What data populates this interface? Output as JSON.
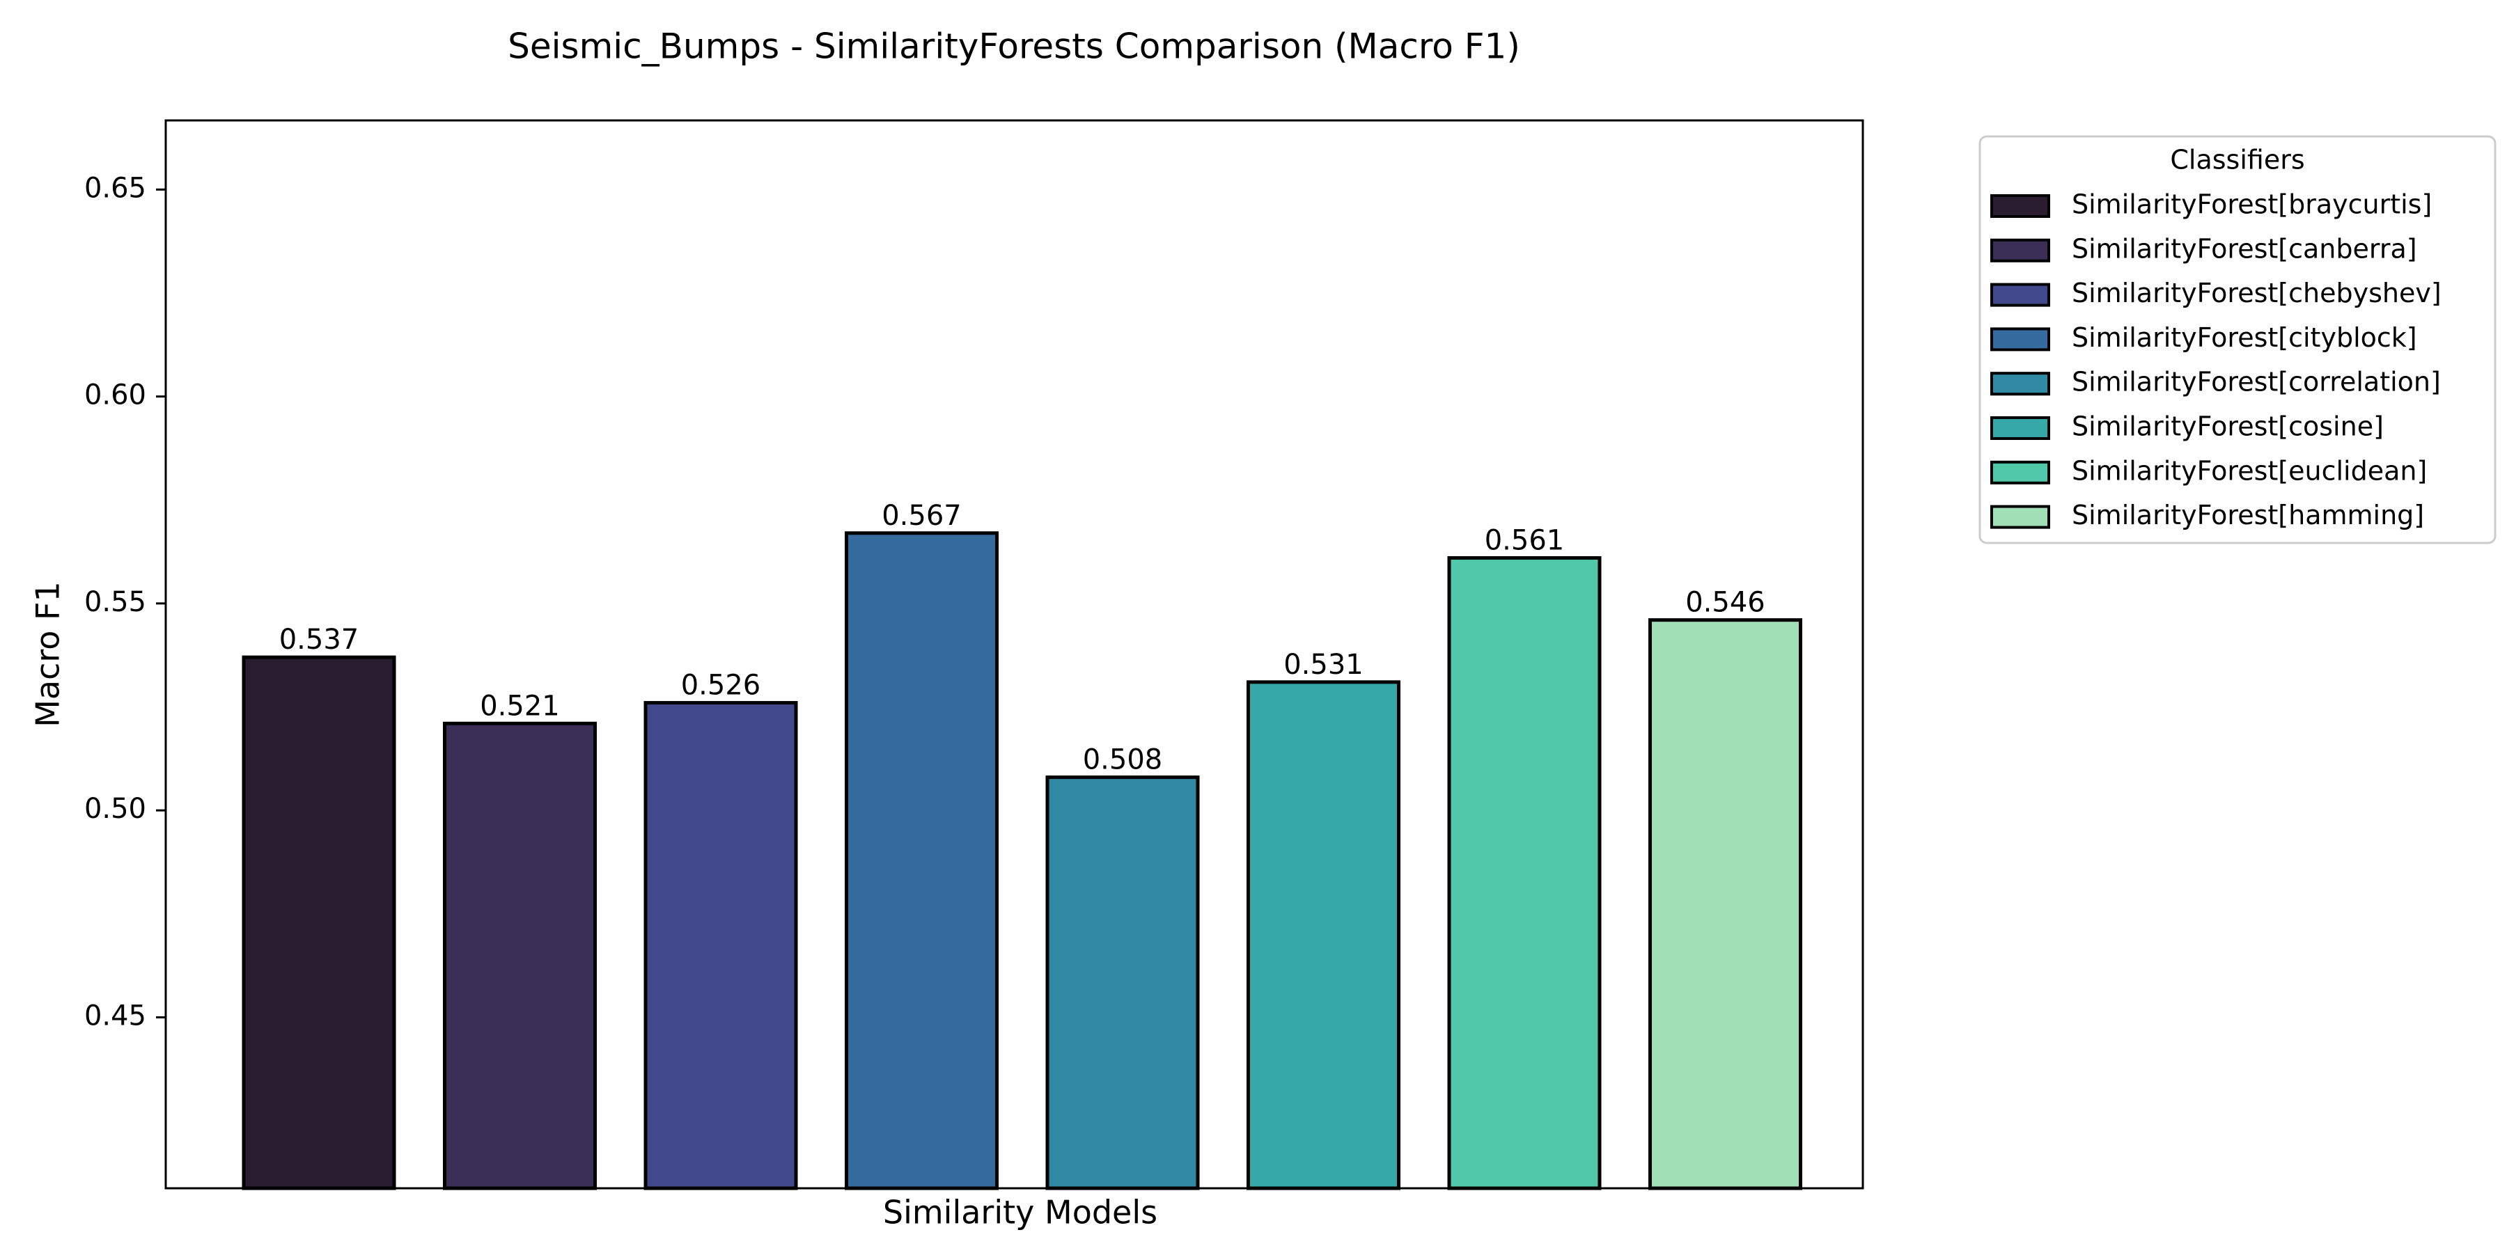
{
  "chart_data": {
    "type": "bar",
    "title": "Seismic_Bumps - SimilarityForests Comparison (Macro F1)",
    "xlabel": "Similarity Models",
    "ylabel": "Macro F1",
    "ylim": [
      0.4087,
      0.6667
    ],
    "yticks": [
      0.45,
      0.5,
      0.55,
      0.6,
      0.65
    ],
    "ytick_labels": [
      "0.45",
      "0.50",
      "0.55",
      "0.60",
      "0.65"
    ],
    "grid": false,
    "legend_position": "outside-top-right",
    "legend_title": "Classifiers",
    "categories": [
      "SimilarityForest[braycurtis]",
      "SimilarityForest[canberra]",
      "SimilarityForest[chebyshev]",
      "SimilarityForest[cityblock]",
      "SimilarityForest[correlation]",
      "SimilarityForest[cosine]",
      "SimilarityForest[euclidean]",
      "SimilarityForest[hamming]"
    ],
    "values": [
      0.537,
      0.521,
      0.526,
      0.567,
      0.508,
      0.531,
      0.561,
      0.546
    ],
    "value_labels": [
      "0.537",
      "0.521",
      "0.526",
      "0.567",
      "0.508",
      "0.531",
      "0.561",
      "0.546"
    ],
    "colors": [
      "#2a1d2f",
      "#3b2e57",
      "#41498c",
      "#366ba0",
      "#318aa3",
      "#37a8a8",
      "#52c8ab",
      "#a1dfb7"
    ],
    "edge_color": "#000000"
  }
}
